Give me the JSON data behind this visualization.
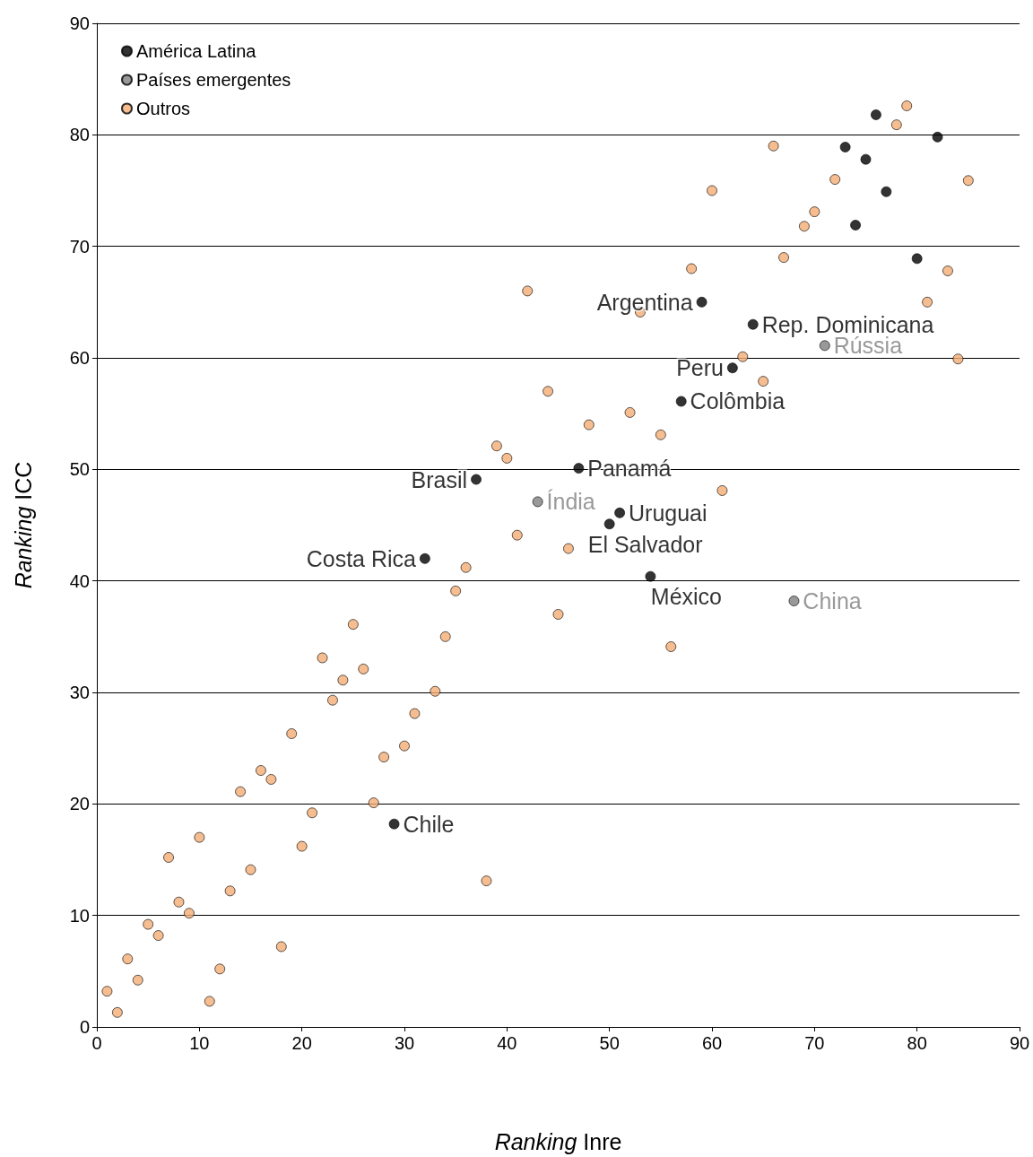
{
  "chart_data": {
    "type": "scatter",
    "xlabel": "Ranking Inre",
    "ylabel": "Ranking ICC",
    "xlim": [
      0,
      90
    ],
    "ylim": [
      0,
      90
    ],
    "xticks": [
      0,
      10,
      20,
      30,
      40,
      50,
      60,
      70,
      80,
      90
    ],
    "yticks": [
      0,
      10,
      20,
      30,
      40,
      50,
      60,
      70,
      80,
      90
    ],
    "grid": "y",
    "legend": "top left",
    "marker": "circle",
    "series": [
      {
        "name": "América Latina",
        "color": "#000000",
        "x": [
          29,
          32,
          37,
          47,
          50,
          51,
          54,
          57,
          59,
          62,
          64,
          73,
          74,
          75,
          76,
          77,
          80,
          82
        ],
        "values": [
          18.2,
          42.0,
          49.1,
          50.1,
          45.1,
          46.1,
          40.4,
          56.1,
          65.0,
          59.1,
          63.0,
          78.9,
          71.9,
          77.8,
          81.8,
          74.9,
          68.9,
          79.8
        ],
        "value_labels": [
          "Chile",
          "Costa Rica",
          "Brasil",
          "Panamá",
          "El Salvador",
          "Uruguai",
          "México",
          "Colômbia",
          "Argentina",
          "Peru",
          "Rep. Dominicana",
          null,
          null,
          null,
          null,
          null,
          null,
          null
        ]
      },
      {
        "name": "Países emergentes",
        "color": "#808080",
        "x": [
          43,
          68,
          71
        ],
        "values": [
          47.1,
          38.2,
          61.1
        ],
        "value_labels": [
          "Índia",
          "China",
          "Rússia"
        ]
      },
      {
        "name": "Outros",
        "color": "#f2ac74",
        "x": [
          1,
          2,
          3,
          4,
          5,
          6,
          7,
          8,
          9,
          10,
          11,
          12,
          13,
          14,
          15,
          16,
          17,
          18,
          19,
          20,
          21,
          22,
          23,
          24,
          25,
          26,
          27,
          28,
          30,
          31,
          33,
          34,
          35,
          36,
          38,
          39,
          40,
          41,
          42,
          44,
          45,
          46,
          48,
          52,
          53,
          55,
          56,
          58,
          60,
          61,
          63,
          65,
          66,
          67,
          69,
          70,
          72,
          78,
          79,
          81,
          83,
          84,
          85
        ],
        "values": [
          3.2,
          1.3,
          6.1,
          4.2,
          9.2,
          8.2,
          15.2,
          11.2,
          10.2,
          17.0,
          2.3,
          5.2,
          12.2,
          21.1,
          14.1,
          23.0,
          22.2,
          7.2,
          26.3,
          16.2,
          19.2,
          33.1,
          29.3,
          31.1,
          36.1,
          32.1,
          20.1,
          24.2,
          25.2,
          28.1,
          30.1,
          35.0,
          39.1,
          41.2,
          13.1,
          52.1,
          51.0,
          44.1,
          66.0,
          57.0,
          37.0,
          42.9,
          54.0,
          55.1,
          64.1,
          53.1,
          34.1,
          68.0,
          75.0,
          48.1,
          60.1,
          57.9,
          79.0,
          69.0,
          71.8,
          73.1,
          76.0,
          80.9,
          82.6,
          65.0,
          67.8,
          59.9,
          75.9
        ]
      }
    ]
  }
}
